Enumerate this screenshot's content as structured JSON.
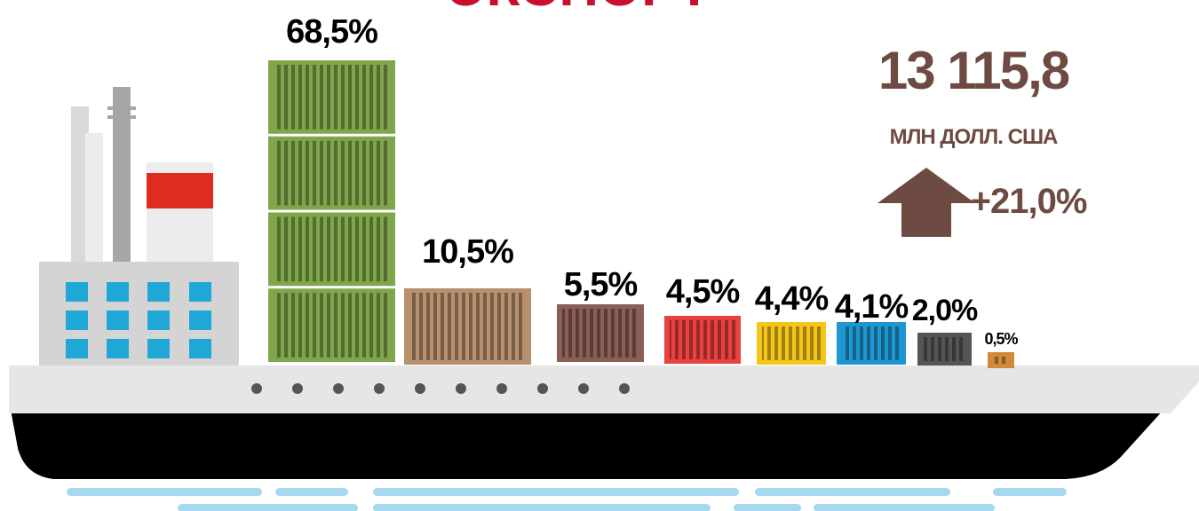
{
  "title": "ЭКСПОРТ",
  "total": {
    "value": "13 115,8",
    "unit": "МЛН ДОЛЛ. США",
    "change": "+21,0%"
  },
  "shares": [
    "68,5%",
    "10,5%",
    "5,5%",
    "4,5%",
    "4,4%",
    "4,1%",
    "2,0%",
    "0,5%"
  ]
}
